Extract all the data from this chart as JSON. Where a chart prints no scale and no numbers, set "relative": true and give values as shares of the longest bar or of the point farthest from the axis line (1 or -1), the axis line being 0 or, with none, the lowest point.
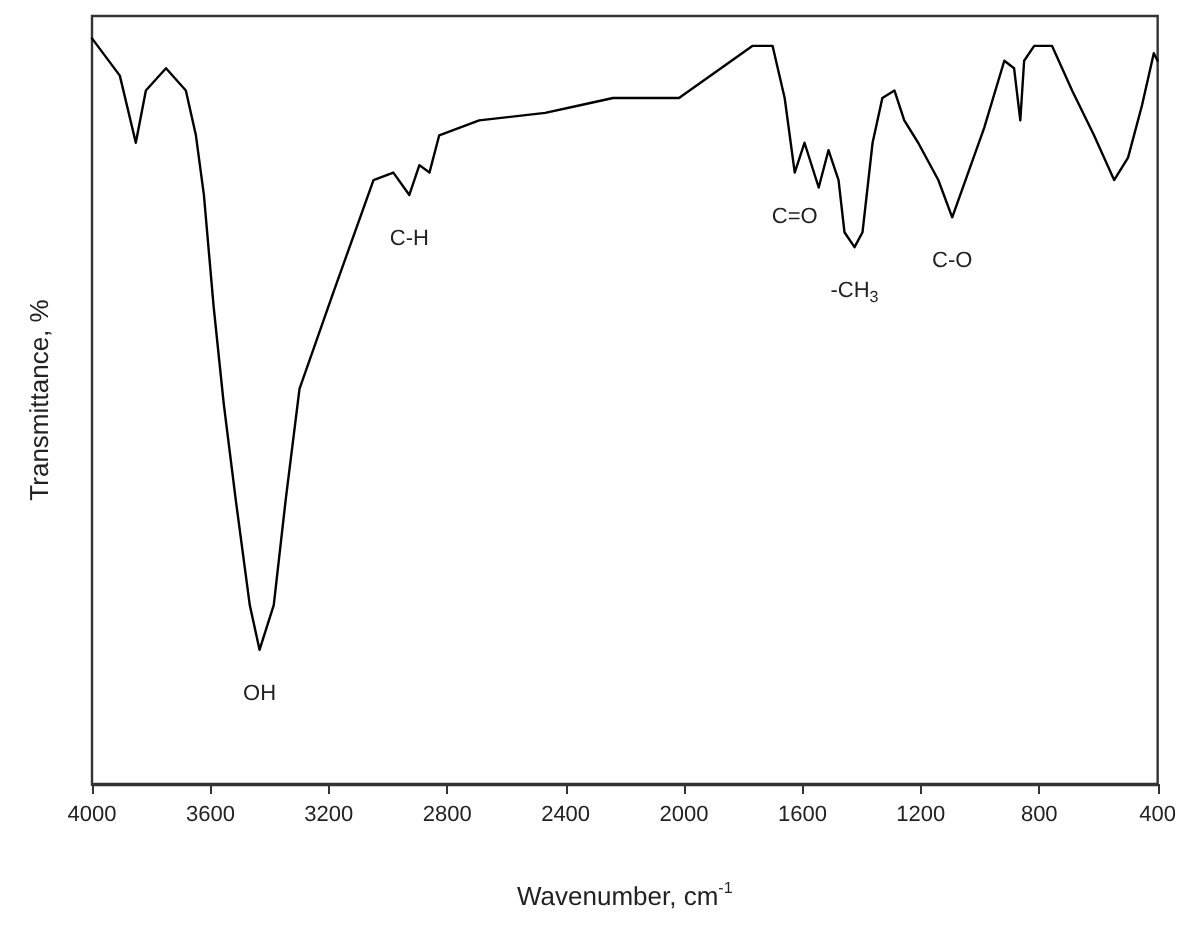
{
  "chart_data": {
    "type": "line",
    "relative": true,
    "xlabel": "Wavenumber, cm$^{-1}$",
    "ylabel": "Transmittance, %",
    "xlim": [
      4000,
      400
    ],
    "xticks": [
      4000,
      3600,
      3200,
      2800,
      2400,
      2000,
      1600,
      1200,
      800,
      400
    ],
    "grid": false,
    "marker": "none",
    "line_style": "solid",
    "series": [
      {
        "color": "#000000",
        "x": [
          4000,
          3906,
          3852,
          3818,
          3750,
          3683,
          3649,
          3622,
          3589,
          3555,
          3514,
          3467,
          3434,
          3386,
          3346,
          3299,
          3184,
          3049,
          2982,
          2928,
          2894,
          2860,
          2827,
          2692,
          2469,
          2355,
          2240,
          2017,
          1768,
          1701,
          1660,
          1626,
          1593,
          1545,
          1512,
          1478,
          1458,
          1424,
          1397,
          1363,
          1330,
          1289,
          1256,
          1209,
          1141,
          1094,
          1040,
          986,
          918,
          885,
          864,
          851,
          817,
          757,
          689,
          615,
          547,
          500,
          453,
          413,
          400
        ],
        "values": [
          1.0,
          0.95,
          0.86,
          0.93,
          0.96,
          0.93,
          0.87,
          0.79,
          0.64,
          0.51,
          0.38,
          0.24,
          0.18,
          0.24,
          0.38,
          0.53,
          0.66,
          0.81,
          0.82,
          0.79,
          0.83,
          0.82,
          0.87,
          0.89,
          0.9,
          0.91,
          0.92,
          0.92,
          0.99,
          0.99,
          0.92,
          0.82,
          0.86,
          0.8,
          0.85,
          0.81,
          0.74,
          0.72,
          0.74,
          0.86,
          0.92,
          0.93,
          0.89,
          0.86,
          0.81,
          0.76,
          0.82,
          0.88,
          0.97,
          0.96,
          0.89,
          0.97,
          0.99,
          0.99,
          0.93,
          0.87,
          0.81,
          0.84,
          0.91,
          0.98,
          0.97
        ]
      }
    ],
    "annotations": [
      {
        "text": "OH",
        "x": 3434,
        "y": 0.18
      },
      {
        "text": "C-H",
        "x": 2928,
        "y": 0.79
      },
      {
        "text": "C=O",
        "x": 1626,
        "y": 0.82
      },
      {
        "text": "-CH$_{3}$",
        "x": 1424,
        "y": 0.72
      },
      {
        "text": "C-O",
        "x": 1094,
        "y": 0.76
      }
    ]
  }
}
